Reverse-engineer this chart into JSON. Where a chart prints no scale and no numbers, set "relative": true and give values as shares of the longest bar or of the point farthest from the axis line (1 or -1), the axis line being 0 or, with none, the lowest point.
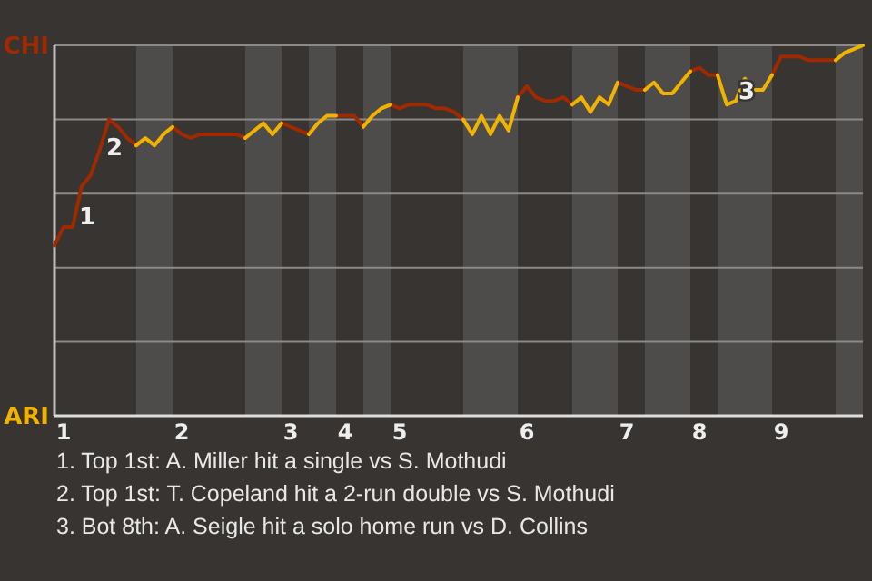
{
  "chart_data": {
    "type": "line",
    "relative": true,
    "categories": [
      null,
      "1",
      null,
      null,
      null,
      null,
      null,
      null,
      null,
      null,
      null,
      null,
      null,
      null,
      "2",
      null,
      null,
      null,
      null,
      null,
      null,
      null,
      null,
      null,
      null,
      null,
      "3",
      null,
      null,
      null,
      null,
      null,
      "4",
      null,
      null,
      null,
      null,
      null,
      "5",
      null,
      null,
      null,
      null,
      null,
      null,
      null,
      null,
      null,
      null,
      null,
      null,
      null,
      "6",
      null,
      null,
      null,
      null,
      null,
      null,
      null,
      null,
      null,
      null,
      "7",
      null,
      null,
      null,
      null,
      null,
      null,
      null,
      "8",
      null,
      null,
      null,
      null,
      null,
      null,
      null,
      null,
      "9",
      null,
      null,
      null,
      null,
      null,
      null,
      null,
      null,
      null
    ],
    "grid": "y",
    "marker": "none",
    "line_style": "solid",
    "series": [
      {
        "color": "#a02a00",
        "values": [
          0.46,
          0.51,
          0.51,
          0.62,
          0.65,
          0.72,
          0.8,
          0.78,
          0.75,
          0.73,
          null,
          null,
          null,
          0.78,
          0.76,
          0.75,
          0.76,
          0.76,
          0.76,
          0.76,
          0.76,
          0.75,
          null,
          null,
          null,
          0.79,
          0.78,
          0.77,
          0.76,
          null,
          null,
          0.81,
          0.81,
          0.81,
          0.78,
          null,
          null,
          0.84,
          0.83,
          0.84,
          0.84,
          0.84,
          0.83,
          0.83,
          0.82,
          0.8,
          null,
          null,
          null,
          null,
          null,
          0.86,
          0.89,
          0.86,
          0.85,
          0.85,
          0.86,
          0.84,
          null,
          null,
          null,
          null,
          0.9,
          0.89,
          0.88,
          0.88,
          null,
          null,
          null,
          null,
          0.93,
          0.94,
          0.92,
          0.92,
          null,
          null,
          null,
          null,
          null,
          0.92,
          0.97,
          0.97,
          0.97,
          0.96,
          0.96,
          0.96,
          0.96,
          null,
          null,
          null
        ]
      },
      {
        "color": "#f2b300",
        "values": [
          null,
          null,
          null,
          null,
          null,
          null,
          null,
          null,
          null,
          0.73,
          0.75,
          0.73,
          0.76,
          0.78,
          null,
          null,
          null,
          null,
          null,
          null,
          null,
          0.75,
          0.77,
          0.79,
          0.76,
          0.79,
          null,
          null,
          0.76,
          0.79,
          0.81,
          0.81,
          null,
          null,
          0.78,
          0.81,
          0.83,
          0.84,
          null,
          null,
          null,
          null,
          null,
          null,
          null,
          0.8,
          0.76,
          0.81,
          0.76,
          0.81,
          0.77,
          0.86,
          null,
          null,
          null,
          null,
          null,
          0.84,
          0.86,
          0.82,
          0.86,
          0.84,
          0.9,
          null,
          null,
          0.88,
          0.9,
          0.87,
          0.87,
          0.9,
          0.93,
          null,
          null,
          0.92,
          0.84,
          0.85,
          0.91,
          0.88,
          0.88,
          0.92,
          null,
          null,
          null,
          null,
          null,
          null,
          0.96,
          0.98,
          0.99,
          1
        ]
      }
    ],
    "annotations": [
      "CHI",
      "ARI",
      "1",
      "2",
      "3",
      "1. Top 1st: A. Miller hit a single vs S. Mothudi",
      "2. Top 1st: T. Copeland hit a 2-run double vs S. Mothudi",
      "3. Bot 8th: A. Seigle hit a solo home run vs D. Collins"
    ]
  }
}
